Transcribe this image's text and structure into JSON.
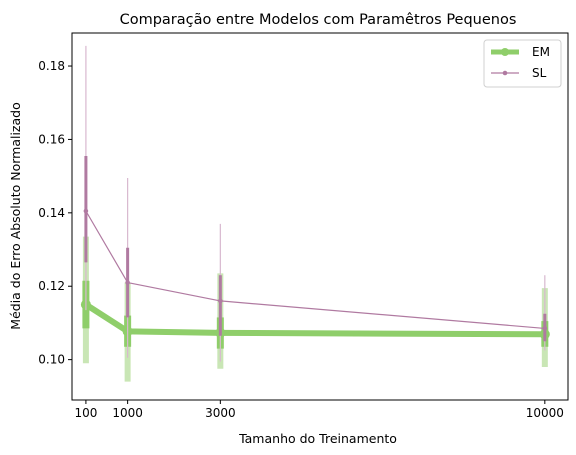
{
  "chart_data": {
    "type": "line",
    "title": "Comparação entre Modelos com Paramêtros Pequenos",
    "xlabel": "Tamanho do Treinamento",
    "ylabel": "Média do Erro Absoluto Normalizado",
    "x": [
      100,
      1000,
      3000,
      10000
    ],
    "xticks": [
      100,
      1000,
      3000,
      10000
    ],
    "xlim": [
      -200,
      10500
    ],
    "ylim": [
      0.089,
      0.189
    ],
    "yticks": [
      0.1,
      0.12,
      0.14,
      0.16,
      0.18
    ],
    "ytick_labels": [
      "0.10",
      "0.12",
      "0.14",
      "0.16",
      "0.18"
    ],
    "legend_position": "upper-right",
    "grid": false,
    "series": [
      {
        "name": "EM",
        "color": "#8fce6a",
        "light_color": "#c9e6b5",
        "values": [
          0.115,
          0.1077,
          0.1073,
          0.1069
        ],
        "inner_range": [
          [
            0.1085,
            0.1215
          ],
          [
            0.1035,
            0.112
          ],
          [
            0.103,
            0.1115
          ],
          [
            0.1035,
            0.1105
          ]
        ],
        "outer_range": [
          [
            0.099,
            0.1335
          ],
          [
            0.094,
            0.121
          ],
          [
            0.0975,
            0.1235
          ],
          [
            0.098,
            0.1195
          ]
        ]
      },
      {
        "name": "SL",
        "color": "#b07aa1",
        "light_color": "#d8b8cf",
        "values": [
          0.1405,
          0.121,
          0.116,
          0.1085
        ],
        "inner_range": [
          [
            0.1265,
            0.1555
          ],
          [
            0.1115,
            0.1305
          ],
          [
            0.1065,
            0.123
          ],
          [
            0.105,
            0.1125
          ]
        ],
        "outer_range": [
          [
            0.1135,
            0.1855
          ],
          [
            0.1005,
            0.1495
          ],
          [
            0.0995,
            0.137
          ],
          [
            0.1025,
            0.123
          ]
        ]
      }
    ]
  }
}
